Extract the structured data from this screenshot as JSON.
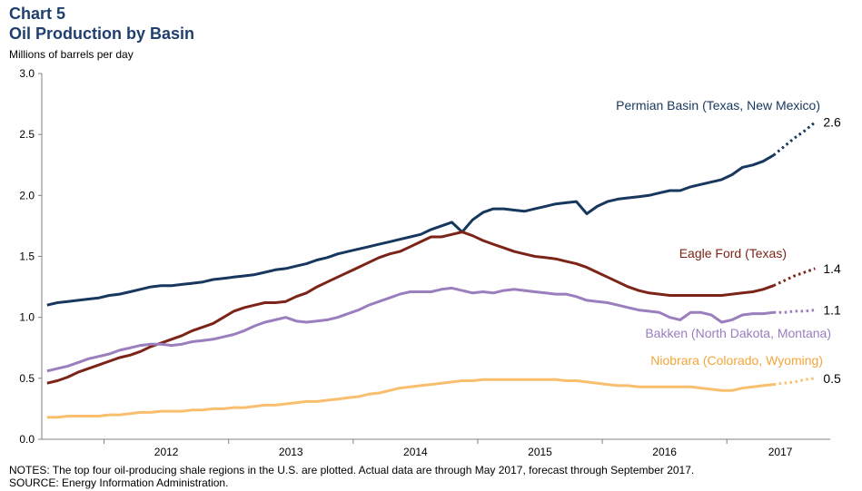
{
  "header": {
    "chart_number": "Chart 5",
    "title": "Oil Production by Basin",
    "units": "Millions of barrels per day"
  },
  "footer": {
    "notes": "NOTES: The top four oil-producing shale regions in the U.S. are plotted. Actual data are through May 2017, forecast through September 2017.",
    "source": "SOURCE: Energy Information Administration."
  },
  "chart_data": {
    "type": "line",
    "title": "Oil Production by Basin",
    "ylabel": "Millions of barrels per day",
    "xlabel": "",
    "ylim": [
      0,
      3.0
    ],
    "yticks": [
      "0.0",
      "0.5",
      "1.0",
      "1.5",
      "2.0",
      "2.5",
      "3.0"
    ],
    "xlim": [
      2011.5,
      2017.83
    ],
    "x_tick_labels": [
      "2012",
      "2013",
      "2014",
      "2015",
      "2016",
      "2017"
    ],
    "x_start": 2011.542,
    "x_step_months": 1,
    "actual_through": "May 2017",
    "forecast_through": "September 2017",
    "grid": false,
    "legend": "inline labels at line ends",
    "series": [
      {
        "name": "Permian Basin (Texas, New Mexico)",
        "color": "#17375e",
        "end_label": "2.6",
        "values": [
          1.1,
          1.12,
          1.13,
          1.14,
          1.15,
          1.16,
          1.18,
          1.19,
          1.21,
          1.23,
          1.25,
          1.26,
          1.26,
          1.27,
          1.28,
          1.29,
          1.31,
          1.32,
          1.33,
          1.34,
          1.35,
          1.37,
          1.39,
          1.4,
          1.42,
          1.44,
          1.47,
          1.49,
          1.52,
          1.54,
          1.56,
          1.58,
          1.6,
          1.62,
          1.64,
          1.66,
          1.68,
          1.72,
          1.75,
          1.78,
          1.7,
          1.8,
          1.86,
          1.89,
          1.89,
          1.88,
          1.87,
          1.89,
          1.91,
          1.93,
          1.94,
          1.95,
          1.85,
          1.91,
          1.95,
          1.97,
          1.98,
          1.99,
          2.0,
          2.02,
          2.04,
          2.04,
          2.07,
          2.09,
          2.11,
          2.13,
          2.17,
          2.23,
          2.25,
          2.28,
          2.33
        ],
        "forecast": [
          2.33,
          2.4,
          2.47,
          2.53,
          2.6
        ]
      },
      {
        "name": "Eagle Ford (Texas)",
        "color": "#7b2417",
        "end_label": "1.4",
        "values": [
          0.46,
          0.48,
          0.51,
          0.55,
          0.58,
          0.61,
          0.64,
          0.67,
          0.69,
          0.72,
          0.76,
          0.79,
          0.82,
          0.85,
          0.89,
          0.92,
          0.95,
          1.0,
          1.05,
          1.08,
          1.1,
          1.12,
          1.12,
          1.13,
          1.17,
          1.2,
          1.25,
          1.29,
          1.33,
          1.37,
          1.41,
          1.45,
          1.49,
          1.52,
          1.54,
          1.58,
          1.62,
          1.66,
          1.66,
          1.68,
          1.7,
          1.67,
          1.63,
          1.6,
          1.57,
          1.54,
          1.52,
          1.5,
          1.49,
          1.48,
          1.46,
          1.44,
          1.41,
          1.37,
          1.33,
          1.29,
          1.25,
          1.22,
          1.2,
          1.19,
          1.18,
          1.18,
          1.18,
          1.18,
          1.18,
          1.18,
          1.19,
          1.2,
          1.21,
          1.23,
          1.26
        ],
        "forecast": [
          1.26,
          1.3,
          1.34,
          1.37,
          1.4
        ]
      },
      {
        "name": "Bakken (North Dakota, Montana)",
        "color": "#9a7ebe",
        "end_label": "1.1",
        "values": [
          0.56,
          0.58,
          0.6,
          0.63,
          0.66,
          0.68,
          0.7,
          0.73,
          0.75,
          0.77,
          0.78,
          0.78,
          0.77,
          0.78,
          0.8,
          0.81,
          0.82,
          0.84,
          0.86,
          0.89,
          0.93,
          0.96,
          0.98,
          1.0,
          0.97,
          0.96,
          0.97,
          0.98,
          1.0,
          1.03,
          1.06,
          1.1,
          1.13,
          1.16,
          1.19,
          1.21,
          1.21,
          1.21,
          1.23,
          1.24,
          1.22,
          1.2,
          1.21,
          1.2,
          1.22,
          1.23,
          1.22,
          1.21,
          1.2,
          1.19,
          1.19,
          1.17,
          1.14,
          1.13,
          1.12,
          1.1,
          1.08,
          1.06,
          1.05,
          1.04,
          1.0,
          0.98,
          1.04,
          1.04,
          1.02,
          0.96,
          0.98,
          1.02,
          1.03,
          1.03,
          1.04
        ],
        "forecast": [
          1.04,
          1.04,
          1.05,
          1.05,
          1.06
        ]
      },
      {
        "name": "Niobrara (Colorado, Wyoming)",
        "color": "#f9bf6f",
        "end_label": "0.5",
        "values": [
          0.18,
          0.18,
          0.19,
          0.19,
          0.19,
          0.19,
          0.2,
          0.2,
          0.21,
          0.22,
          0.22,
          0.23,
          0.23,
          0.23,
          0.24,
          0.24,
          0.25,
          0.25,
          0.26,
          0.26,
          0.27,
          0.28,
          0.28,
          0.29,
          0.3,
          0.31,
          0.31,
          0.32,
          0.33,
          0.34,
          0.35,
          0.37,
          0.38,
          0.4,
          0.42,
          0.43,
          0.44,
          0.45,
          0.46,
          0.47,
          0.48,
          0.48,
          0.49,
          0.49,
          0.49,
          0.49,
          0.49,
          0.49,
          0.49,
          0.49,
          0.48,
          0.48,
          0.47,
          0.46,
          0.45,
          0.44,
          0.44,
          0.43,
          0.43,
          0.43,
          0.43,
          0.43,
          0.43,
          0.42,
          0.41,
          0.4,
          0.4,
          0.42,
          0.43,
          0.44,
          0.45
        ],
        "forecast": [
          0.45,
          0.46,
          0.47,
          0.49,
          0.5
        ]
      }
    ]
  }
}
